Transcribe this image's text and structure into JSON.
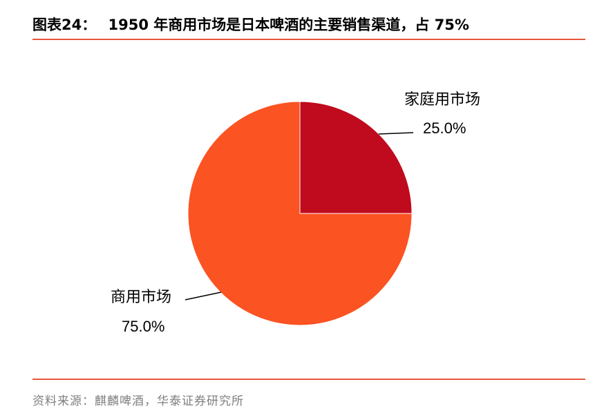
{
  "header": {
    "prefix": "图表24：",
    "title": "1950 年商用市场是日本啤酒的主要销售渠道，占 75%"
  },
  "footer": {
    "source": "资料来源：麒麟啤酒，华泰证券研究所"
  },
  "colors": {
    "accent_rule": "#e8553b",
    "home_market": "#c00b1e",
    "commercial_market": "#fb5322"
  },
  "chart_data": {
    "type": "pie",
    "title": "1950 年商用市场是日本啤酒的主要销售渠道，占 75%",
    "slices": [
      {
        "label": "家庭用市场",
        "value": 25.0,
        "display": "25.0%",
        "color": "#c00b1e"
      },
      {
        "label": "商用市场",
        "value": 75.0,
        "display": "75.0%",
        "color": "#fb5322"
      }
    ],
    "start_angle": "12 o'clock, clockwise"
  }
}
